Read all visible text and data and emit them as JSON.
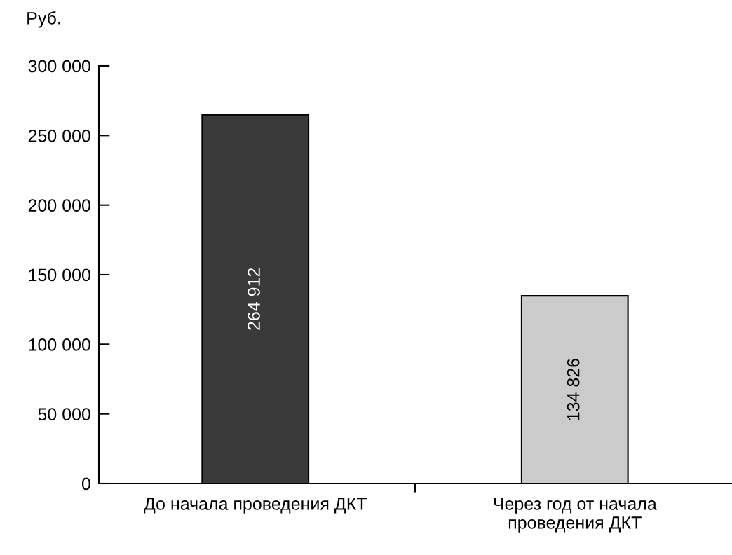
{
  "chart_data": {
    "type": "bar",
    "ylabel": "Руб.",
    "categories": [
      "До начала проведения ДКТ",
      "Через год от начала\nпроведения ДКТ"
    ],
    "values": [
      264912,
      134826
    ],
    "colors": [
      "#3a3a3a",
      "#cbcbcb"
    ],
    "value_labels": [
      "264 912",
      "134 826"
    ],
    "ylim": [
      0,
      300000
    ],
    "yticks": [
      0,
      {
        "value": 50000,
        "label": "50 000"
      },
      {
        "value": 100000,
        "label": "100 000"
      },
      {
        "value": 150000,
        "label": "150 000"
      },
      {
        "value": 200000,
        "label": "200 000"
      },
      {
        "value": 250000,
        "label": "250 000"
      },
      {
        "value": 300000,
        "label": "300 000"
      }
    ]
  }
}
